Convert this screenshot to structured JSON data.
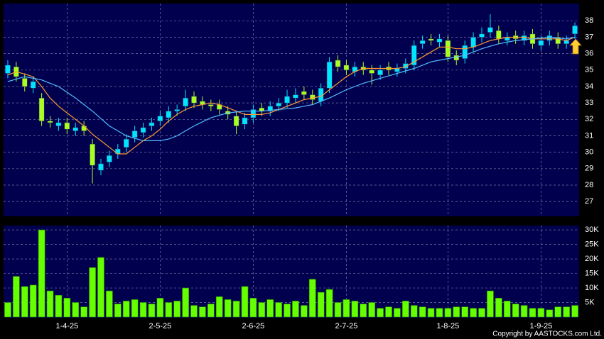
{
  "chart_data": {
    "type": "candlestick",
    "categories": [
      null,
      null,
      null,
      null,
      null,
      null,
      null,
      "1-4-25",
      null,
      null,
      null,
      null,
      null,
      null,
      null,
      null,
      null,
      null,
      "2-5-25",
      null,
      null,
      null,
      null,
      null,
      null,
      null,
      null,
      null,
      null,
      "2-6-25",
      null,
      null,
      null,
      null,
      null,
      null,
      null,
      null,
      null,
      null,
      "2-7-25",
      null,
      null,
      null,
      null,
      null,
      null,
      null,
      null,
      null,
      null,
      null,
      "1-8-25",
      null,
      null,
      null,
      null,
      null,
      null,
      null,
      null,
      null,
      null,
      "1-9-25",
      null,
      null,
      null,
      null
    ],
    "open": [
      34.8,
      35.2,
      34.5,
      33.9,
      33.3,
      31.9,
      31.6,
      31.8,
      31.3,
      31.6,
      30.5,
      28.9,
      29.4,
      29.9,
      30.3,
      30.9,
      31.2,
      31.6,
      31.9,
      32.1,
      32.5,
      32.8,
      33.4,
      33.1,
      32.9,
      32.9,
      32.5,
      32.2,
      31.7,
      32.1,
      32.7,
      32.5,
      32.8,
      33.0,
      33.3,
      33.7,
      33.5,
      33.1,
      33.9,
      35.6,
      35.3,
      34.9,
      35.2,
      35.0,
      34.7,
      35.2,
      34.9,
      35.1,
      35.3,
      36.6,
      36.9,
      36.7,
      36.8,
      35.9,
      35.7,
      36.4,
      37.0,
      37.3,
      37.4,
      36.8,
      37.1,
      36.8,
      37.2,
      36.5,
      36.8,
      37.0,
      36.6,
      37.2
    ],
    "high": [
      35.6,
      35.5,
      34.8,
      34.6,
      33.6,
      32.2,
      32.1,
      32.1,
      31.8,
      31.9,
      30.8,
      29.6,
      30.1,
      30.5,
      31.1,
      31.6,
      31.8,
      32.1,
      32.5,
      32.8,
      32.9,
      33.8,
      33.7,
      33.4,
      33.2,
      33.2,
      32.8,
      32.5,
      32.4,
      32.9,
      33.0,
      33.1,
      33.3,
      33.8,
      33.9,
      34.0,
      33.8,
      34.2,
      35.8,
      35.9,
      35.6,
      35.5,
      35.5,
      35.3,
      35.3,
      35.5,
      35.4,
      35.7,
      36.8,
      37.1,
      37.2,
      37.2,
      37.1,
      36.2,
      36.8,
      37.3,
      37.6,
      38.4,
      37.7,
      37.3,
      37.4,
      37.4,
      37.5,
      37.1,
      37.4,
      37.3,
      37.1,
      37.9
    ],
    "low": [
      34.5,
      34.3,
      33.7,
      33.6,
      31.6,
      31.5,
      31.3,
      31.1,
      31.0,
      31.0,
      28.1,
      28.6,
      29.1,
      29.6,
      30.0,
      30.6,
      30.9,
      31.3,
      31.6,
      31.8,
      32.2,
      32.5,
      32.7,
      32.6,
      32.5,
      32.3,
      32.0,
      31.1,
      31.4,
      31.8,
      32.2,
      32.2,
      32.5,
      32.7,
      33.0,
      33.2,
      32.9,
      32.8,
      33.6,
      34.9,
      34.7,
      34.6,
      34.7,
      34.1,
      34.4,
      34.7,
      34.6,
      34.8,
      35.0,
      36.3,
      36.5,
      36.4,
      35.5,
      35.3,
      35.4,
      36.1,
      36.7,
      37.0,
      36.6,
      36.5,
      36.6,
      36.5,
      36.3,
      36.2,
      36.5,
      36.3,
      36.3,
      36.9
    ],
    "close": [
      35.3,
      34.6,
      34.0,
      34.3,
      31.9,
      31.8,
      31.8,
      31.4,
      31.5,
      31.3,
      29.2,
      29.3,
      29.8,
      30.2,
      30.8,
      31.3,
      31.5,
      31.8,
      32.2,
      32.5,
      32.6,
      33.3,
      33.0,
      32.9,
      32.8,
      32.6,
      32.3,
      31.6,
      32.1,
      32.6,
      32.5,
      32.8,
      33.0,
      33.4,
      33.5,
      33.5,
      33.2,
      33.9,
      35.5,
      35.2,
      35.0,
      35.2,
      35.0,
      34.8,
      35.0,
      35.0,
      35.1,
      35.4,
      36.5,
      36.8,
      36.8,
      36.9,
      35.8,
      35.6,
      36.5,
      37.0,
      37.2,
      37.6,
      36.9,
      37.0,
      36.9,
      37.1,
      36.6,
      36.8,
      37.1,
      36.6,
      36.8,
      37.7
    ],
    "up_color": "#00e5ff",
    "down_color": "#aaff22",
    "lines": [
      {
        "color": "#ff9933",
        "values": [
          34.7,
          34.9,
          34.75,
          34.6,
          34.0,
          33.3,
          32.8,
          32.4,
          32.0,
          31.6,
          31.1,
          30.7,
          30.3,
          29.9,
          29.9,
          30.3,
          30.7,
          31.0,
          31.4,
          31.9,
          32.3,
          32.6,
          32.8,
          32.9,
          33.0,
          32.9,
          32.7,
          32.5,
          32.3,
          32.3,
          32.3,
          32.4,
          32.6,
          32.8,
          33.0,
          33.2,
          33.3,
          33.4,
          33.8,
          34.2,
          34.6,
          34.9,
          35.1,
          35.1,
          35.1,
          35.1,
          35.1,
          35.2,
          35.5,
          35.8,
          36.1,
          36.4,
          36.4,
          36.3,
          36.3,
          36.4,
          36.6,
          36.8,
          36.9,
          37.0,
          37.0,
          37.0,
          36.9,
          36.9,
          36.9,
          36.9,
          36.8,
          37.0
        ]
      },
      {
        "color": "#55bbff",
        "values": [
          34.3,
          34.45,
          34.6,
          34.5,
          34.4,
          34.2,
          34.0,
          33.65,
          33.3,
          32.9,
          32.5,
          32.05,
          31.6,
          31.3,
          31.0,
          30.85,
          30.7,
          30.7,
          30.7,
          30.8,
          31.0,
          31.3,
          31.6,
          31.85,
          32.1,
          32.25,
          32.4,
          32.45,
          32.5,
          32.5,
          32.5,
          32.55,
          32.6,
          32.65,
          32.7,
          32.8,
          32.9,
          33.1,
          33.3,
          33.55,
          33.8,
          34.0,
          34.2,
          34.35,
          34.5,
          34.65,
          34.8,
          34.95,
          35.1,
          35.3,
          35.5,
          35.6,
          35.7,
          35.8,
          35.9,
          36.1,
          36.3,
          36.45,
          36.6,
          36.7,
          36.8,
          36.85,
          36.9,
          36.95,
          37.0,
          36.95,
          36.9,
          37.0
        ]
      }
    ],
    "ylim": [
      26.1,
      39.05
    ],
    "yticks": [
      27,
      28,
      29,
      30,
      31,
      32,
      33,
      34,
      35,
      36,
      37,
      38
    ],
    "grid": true,
    "volume": {
      "color": "#66ff00",
      "values": [
        5000,
        14000,
        10500,
        11000,
        30000,
        9000,
        7500,
        6500,
        5000,
        3500,
        17000,
        20500,
        9000,
        4500,
        5500,
        6000,
        5000,
        4500,
        6500,
        5000,
        5500,
        10000,
        4000,
        3500,
        4500,
        7000,
        6000,
        5500,
        10500,
        6500,
        5000,
        6000,
        5000,
        4500,
        5500,
        4000,
        13000,
        8500,
        9500,
        5000,
        6000,
        5500,
        4500,
        5000,
        3000,
        3500,
        3000,
        5500,
        4000,
        3500,
        3000,
        3000,
        3000,
        3500,
        3500,
        3000,
        3000,
        9000,
        6500,
        5500,
        4500,
        4000,
        3000,
        3000,
        2500,
        3500,
        3500,
        4000
      ],
      "ylim": [
        0,
        31500
      ],
      "yticks": [
        {
          "value": 5000,
          "label": "5K"
        },
        {
          "value": 10000,
          "label": "10K"
        },
        {
          "value": 15000,
          "label": "15K"
        },
        {
          "value": 20000,
          "label": "20K"
        },
        {
          "value": 25000,
          "label": "25K"
        },
        {
          "value": 30000,
          "label": "30K"
        }
      ]
    },
    "copyright": "Copyright by AASTOCKS.com Ltd."
  }
}
